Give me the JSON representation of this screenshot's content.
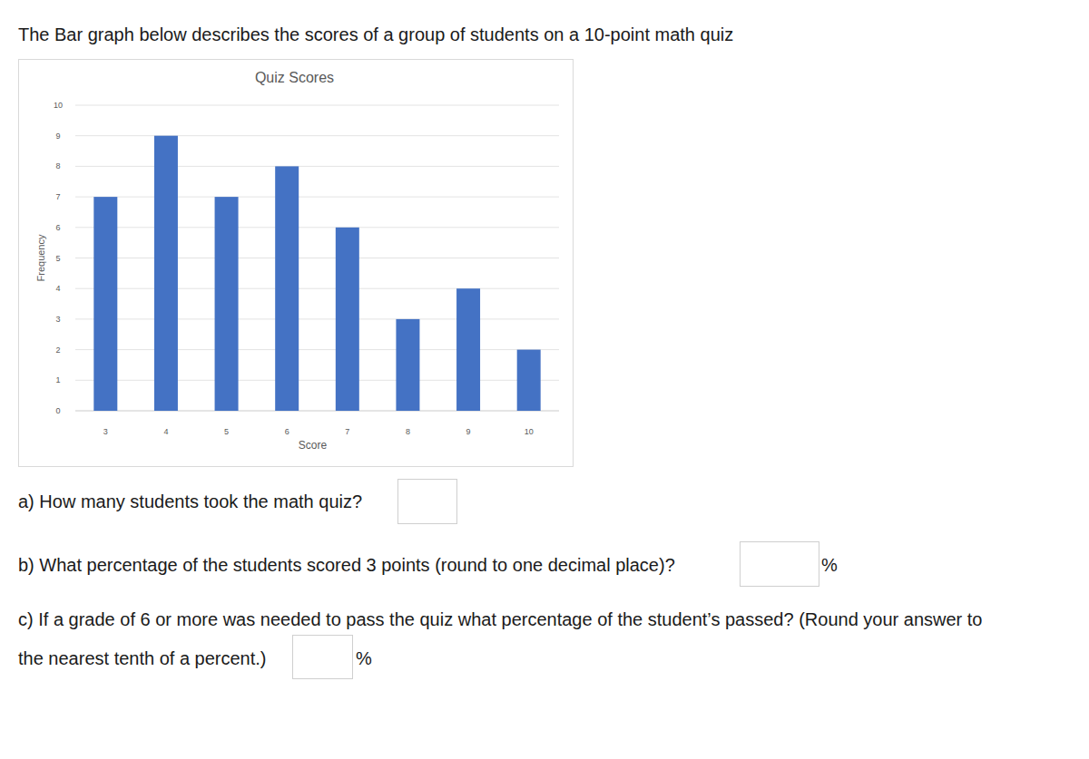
{
  "header": {
    "text": "The Bar graph below describes the scores of a group of students on a 10-point math quiz"
  },
  "chart_data": {
    "type": "bar",
    "title": "Quiz Scores",
    "x_label": "Score",
    "y_label": "Frequency",
    "categories": [
      "3",
      "4",
      "5",
      "6",
      "7",
      "8",
      "9",
      "10"
    ],
    "values": [
      7,
      9,
      7,
      8,
      6,
      3,
      4,
      2
    ],
    "color": "#4472c4",
    "ylim": [
      0,
      10
    ],
    "yticks": [
      0,
      1,
      2,
      3,
      4,
      5,
      6,
      7,
      8,
      9,
      10
    ],
    "grid": true
  },
  "questions": [
    {
      "lines": [
        "a) How many students took the math quiz?"
      ]
    },
    {
      "lines": [
        "b) What percentage of the students scored 3 points (round to one decimal place)?"
      ],
      "unit": "%"
    },
    {
      "lines": [
        "c) If a grade of 6 or more was needed to pass the quiz what percentage of the student’s passed? (Round your answer to",
        "the nearest tenth of a percent.)"
      ],
      "unit": "%"
    }
  ]
}
